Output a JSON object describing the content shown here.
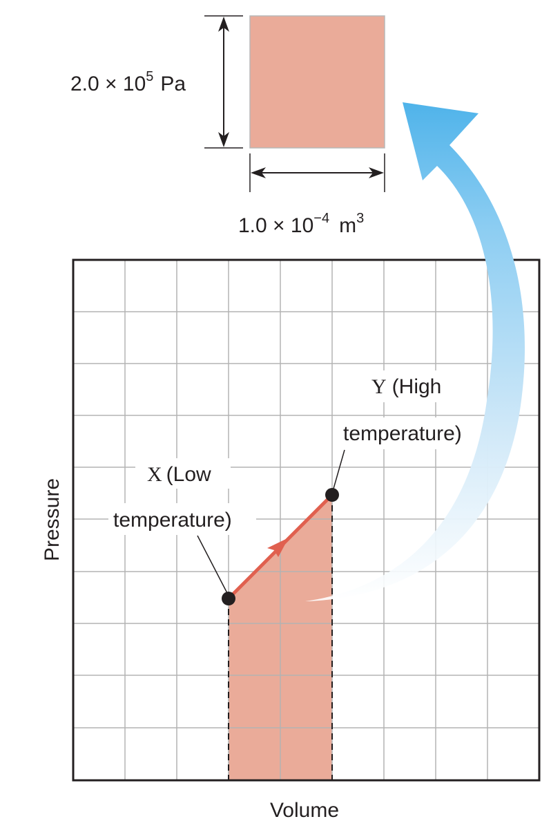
{
  "scale_box": {
    "pressure_label": {
      "coef": "2.0 × 10",
      "exp": "5",
      "unit": "Pa"
    },
    "volume_label": {
      "coef": "1.0 × 10",
      "exp": "−4",
      "unit": "m",
      "unit_exp": "3"
    }
  },
  "graph": {
    "x_axis_label": "Volume",
    "y_axis_label": "Pressure",
    "grid_cells": [
      10,
      10
    ],
    "point_x": {
      "letter": "X",
      "line1": "(Low",
      "line2": "temperature)"
    },
    "point_y": {
      "letter": "Y",
      "line1": "(High",
      "line2": "temperature)"
    }
  },
  "colors": {
    "area_fill": "#eaab99",
    "process_line": "#e0604f",
    "grid": "#b3b3b3",
    "frame": "#231f20",
    "arrow_blue": "#4fb3ea"
  }
}
